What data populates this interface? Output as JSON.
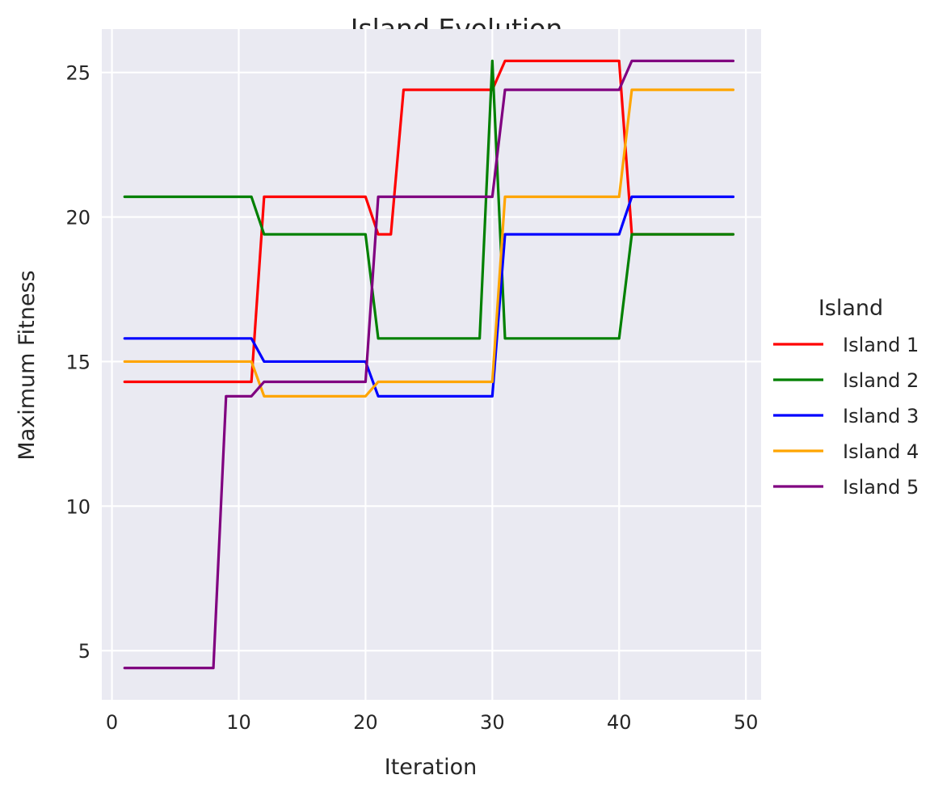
{
  "chart_data": {
    "type": "line",
    "title": "Island Evolution",
    "xlabel": "Iteration",
    "ylabel": "Maximum Fitness",
    "xlim": [
      -0.8,
      51.2
    ],
    "ylim": [
      3.3,
      26.5
    ],
    "xticks": [
      0,
      10,
      20,
      30,
      40,
      50
    ],
    "yticks": [
      5,
      10,
      15,
      20,
      25
    ],
    "grid": true,
    "legend": {
      "title": "Island",
      "placement": "right, outside plot"
    },
    "x": [
      1,
      2,
      3,
      4,
      5,
      6,
      7,
      8,
      9,
      10,
      11,
      12,
      13,
      14,
      15,
      16,
      17,
      18,
      19,
      20,
      21,
      22,
      23,
      24,
      25,
      26,
      27,
      28,
      29,
      30,
      31,
      32,
      33,
      34,
      35,
      36,
      37,
      38,
      39,
      40,
      41,
      42,
      43,
      44,
      45,
      46,
      47,
      48,
      49
    ],
    "series": [
      {
        "name": "Island 1",
        "color": "#ff0000",
        "values": [
          14.3,
          14.3,
          14.3,
          14.3,
          14.3,
          14.3,
          14.3,
          14.3,
          14.3,
          14.3,
          14.3,
          20.7,
          20.7,
          20.7,
          20.7,
          20.7,
          20.7,
          20.7,
          20.7,
          20.7,
          19.4,
          19.4,
          24.4,
          24.4,
          24.4,
          24.4,
          24.4,
          24.4,
          24.4,
          24.4,
          25.4,
          25.4,
          25.4,
          25.4,
          25.4,
          25.4,
          25.4,
          25.4,
          25.4,
          25.4,
          19.4,
          19.4,
          19.4,
          19.4,
          19.4,
          19.4,
          19.4,
          19.4,
          19.4
        ]
      },
      {
        "name": "Island 2",
        "color": "#008000",
        "values": [
          20.7,
          20.7,
          20.7,
          20.7,
          20.7,
          20.7,
          20.7,
          20.7,
          20.7,
          20.7,
          20.7,
          19.4,
          19.4,
          19.4,
          19.4,
          19.4,
          19.4,
          19.4,
          19.4,
          19.4,
          15.8,
          15.8,
          15.8,
          15.8,
          15.8,
          15.8,
          15.8,
          15.8,
          15.8,
          25.4,
          15.8,
          15.8,
          15.8,
          15.8,
          15.8,
          15.8,
          15.8,
          15.8,
          15.8,
          15.8,
          19.4,
          19.4,
          19.4,
          19.4,
          19.4,
          19.4,
          19.4,
          19.4,
          19.4
        ]
      },
      {
        "name": "Island 3",
        "color": "#0000ff",
        "values": [
          15.8,
          15.8,
          15.8,
          15.8,
          15.8,
          15.8,
          15.8,
          15.8,
          15.8,
          15.8,
          15.8,
          15.0,
          15.0,
          15.0,
          15.0,
          15.0,
          15.0,
          15.0,
          15.0,
          15.0,
          13.8,
          13.8,
          13.8,
          13.8,
          13.8,
          13.8,
          13.8,
          13.8,
          13.8,
          13.8,
          19.4,
          19.4,
          19.4,
          19.4,
          19.4,
          19.4,
          19.4,
          19.4,
          19.4,
          19.4,
          20.7,
          20.7,
          20.7,
          20.7,
          20.7,
          20.7,
          20.7,
          20.7,
          20.7
        ]
      },
      {
        "name": "Island 4",
        "color": "#ffa500",
        "values": [
          15.0,
          15.0,
          15.0,
          15.0,
          15.0,
          15.0,
          15.0,
          15.0,
          15.0,
          15.0,
          15.0,
          13.8,
          13.8,
          13.8,
          13.8,
          13.8,
          13.8,
          13.8,
          13.8,
          13.8,
          14.3,
          14.3,
          14.3,
          14.3,
          14.3,
          14.3,
          14.3,
          14.3,
          14.3,
          14.3,
          20.7,
          20.7,
          20.7,
          20.7,
          20.7,
          20.7,
          20.7,
          20.7,
          20.7,
          20.7,
          24.4,
          24.4,
          24.4,
          24.4,
          24.4,
          24.4,
          24.4,
          24.4,
          24.4
        ]
      },
      {
        "name": "Island 5",
        "color": "#800080",
        "values": [
          4.4,
          4.4,
          4.4,
          4.4,
          4.4,
          4.4,
          4.4,
          4.4,
          13.8,
          13.8,
          13.8,
          14.3,
          14.3,
          14.3,
          14.3,
          14.3,
          14.3,
          14.3,
          14.3,
          14.3,
          20.7,
          20.7,
          20.7,
          20.7,
          20.7,
          20.7,
          20.7,
          20.7,
          20.7,
          20.7,
          24.4,
          24.4,
          24.4,
          24.4,
          24.4,
          24.4,
          24.4,
          24.4,
          24.4,
          24.4,
          25.4,
          25.4,
          25.4,
          25.4,
          25.4,
          25.4,
          25.4,
          25.4,
          25.4
        ]
      }
    ],
    "colors": {
      "plot_background": "#eaeaf2",
      "grid": "#ffffff",
      "text": "#262626"
    }
  }
}
